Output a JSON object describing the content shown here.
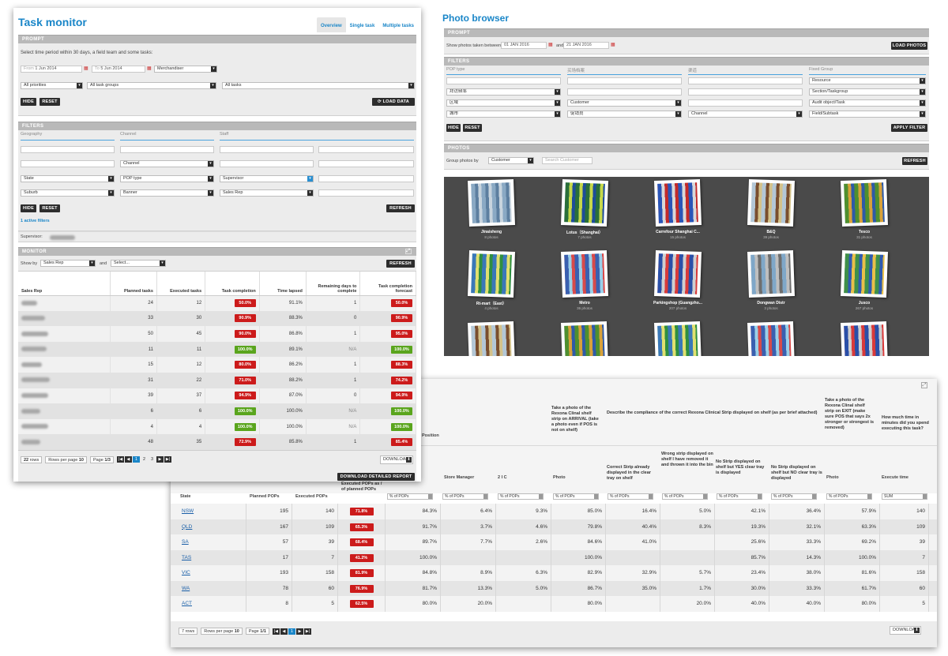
{
  "task_monitor": {
    "title": "Task monitor",
    "tabs": [
      "Overview",
      "Single task",
      "Multiple tasks"
    ],
    "prompt": {
      "header": "PROMPT",
      "instruction": "Select time period within 30 days, a field team and some tasks:",
      "from_label": "From",
      "from_value": "1 Jun 2014",
      "to_label": "To",
      "to_value": "5 Jun 2014",
      "team": "Merchandiser",
      "priorities": "All priorities",
      "task_groups": "All task groups",
      "tasks": "All tasks",
      "hide": "HIDE",
      "reset": "RESET",
      "load_data": "LOAD DATA"
    },
    "filters": {
      "header": "FILTERS",
      "cols": [
        "Geography",
        "Channel",
        "Staff"
      ],
      "channel": "Channel",
      "state": "State",
      "pop_type": "POP type",
      "supervisor": "Supervisor",
      "suburb": "Suburb",
      "banner": "Banner",
      "sales_rep": "Sales Rep",
      "hide": "HIDE",
      "reset": "RESET",
      "refresh": "REFRESH",
      "active_filters": "1 active filters",
      "supervisor_label": "Supervisor:"
    },
    "monitor": {
      "header": "MONITOR",
      "show_by_label": "Show by",
      "show_by": "Sales Rep",
      "and_label": "and",
      "second": "Select...",
      "refresh": "REFRESH",
      "columns": [
        "Sales Rep",
        "Planned tasks",
        "Executed tasks",
        "Task completion",
        "Time lapsed",
        "Remaining days to complete",
        "Task completion forecast"
      ],
      "rows": [
        {
          "planned": "24",
          "executed": "12",
          "completion": "50.0%",
          "c_status": "red",
          "lapsed": "91.1%",
          "remaining": "1",
          "forecast": "50.0%",
          "f_status": "red",
          "w": 20
        },
        {
          "planned": "33",
          "executed": "30",
          "completion": "90.9%",
          "c_status": "red",
          "lapsed": "88.3%",
          "remaining": "0",
          "forecast": "90.9%",
          "f_status": "red",
          "w": 30
        },
        {
          "planned": "50",
          "executed": "45",
          "completion": "90.0%",
          "c_status": "red",
          "lapsed": "86.8%",
          "remaining": "1",
          "forecast": "95.0%",
          "f_status": "red",
          "w": 34
        },
        {
          "planned": "11",
          "executed": "11",
          "completion": "100.0%",
          "c_status": "green",
          "lapsed": "89.1%",
          "remaining": "N/A",
          "forecast": "100.0%",
          "f_status": "green",
          "w": 32
        },
        {
          "planned": "15",
          "executed": "12",
          "completion": "80.0%",
          "c_status": "red",
          "lapsed": "86.2%",
          "remaining": "1",
          "forecast": "88.3%",
          "f_status": "red",
          "w": 26
        },
        {
          "planned": "31",
          "executed": "22",
          "completion": "71.0%",
          "c_status": "red",
          "lapsed": "88.2%",
          "remaining": "1",
          "forecast": "74.2%",
          "f_status": "red",
          "w": 36
        },
        {
          "planned": "39",
          "executed": "37",
          "completion": "94.9%",
          "c_status": "red",
          "lapsed": "87.0%",
          "remaining": "0",
          "forecast": "94.9%",
          "f_status": "red",
          "w": 34
        },
        {
          "planned": "6",
          "executed": "6",
          "completion": "100.0%",
          "c_status": "green",
          "lapsed": "100.0%",
          "remaining": "N/A",
          "forecast": "100.0%",
          "f_status": "green",
          "w": 24
        },
        {
          "planned": "4",
          "executed": "4",
          "completion": "100.0%",
          "c_status": "green",
          "lapsed": "100.0%",
          "remaining": "N/A",
          "forecast": "100.0%",
          "f_status": "green",
          "w": 34
        },
        {
          "planned": "48",
          "executed": "35",
          "completion": "72.9%",
          "c_status": "red",
          "lapsed": "85.8%",
          "remaining": "1",
          "forecast": "85.4%",
          "f_status": "red",
          "w": 24
        }
      ],
      "pager": {
        "rows": "22",
        "rows_label": "rows",
        "per_page_label": "Rows per page",
        "per_page": "10",
        "page_label": "Page",
        "page": "1/3",
        "pages": [
          "1",
          "2",
          "3"
        ],
        "download": "DOWNLOAD"
      },
      "download_report": "DOWNLOAD DETAILED REPORT"
    }
  },
  "photo_browser": {
    "title": "Photo browser",
    "prompt": {
      "header": "PROMPT",
      "label": "Show photos taken between",
      "from": "01 JAN 2016",
      "and_label": "and",
      "to": "21 JAN 2016",
      "load": "LOAD PHOTOS"
    },
    "filters": {
      "header": "FILTERS",
      "cols": [
        "POP type",
        "买场档案",
        "渠道",
        "Fixed Group"
      ],
      "resource": "Resource",
      "r1": [
        "拜访频率",
        "",
        "",
        "Section/Taskgroup"
      ],
      "r2": [
        "区域",
        "Customer",
        "",
        "Audit object/Task"
      ],
      "r3": [
        "城市",
        "促销员",
        "Channel",
        "Field/Subtask"
      ],
      "hide": "HIDE",
      "reset": "RESET",
      "apply": "APPLY FILTER"
    },
    "photos": {
      "header": "PHOTOS",
      "group_label": "Group photos by",
      "group_by": "Customer",
      "search_placeholder": "Search Customer",
      "refresh": "REFRESH",
      "items": [
        {
          "name": "Jinaisheng",
          "count": "8 photos"
        },
        {
          "name": "Lotus（Shanghai）",
          "count": "7 photos"
        },
        {
          "name": "Carrefour Shanghai C...",
          "count": "15 photos"
        },
        {
          "name": "B&Q",
          "count": "39 photos"
        },
        {
          "name": "Tesco",
          "count": "31 photos"
        },
        {
          "name": "Rt-mart（East）",
          "count": "4 photos"
        },
        {
          "name": "Metro",
          "count": "36 photos"
        },
        {
          "name": "Parkingshop (Guangzho...",
          "count": "207 photos"
        },
        {
          "name": "Dongwan Distr",
          "count": "3 photos"
        },
        {
          "name": "Jusco",
          "count": "267 photos"
        }
      ]
    }
  },
  "compliance": {
    "position_label": "Position",
    "q_arrival": "Take a photo of the Rexona Clinal shelf strip on ARRIVAL (take a photo even if POS is not on shelf)",
    "q_describe": "Describe the compliance of the correct Rexona Clinical Strip displayed on shelf (as per brief attached)",
    "q_exit": "Take a photo of the Rexona Clinal shelf strip on EXIT (make sure POS that says 2x stronger or strongest is removed)",
    "q_time": "How much time in minutes did you spend executing this task?",
    "sub": [
      "Store Manager",
      "2 I C",
      "Photo",
      "Correct Strip already displayed in the clear tray on shelf",
      "Wrong strip displayed on shelf I have removed it and thrown it into the bin",
      "No Strip displayed on shelf but YES clear tray is displayed",
      "No Strip displayed on shelf but NO clear tray is displayed",
      "Photo",
      "Execute time"
    ],
    "cols": [
      "State",
      "Planned POPs",
      "Executed POPs",
      "Executed POPs as / of planned POPs"
    ],
    "pct_label": "% of POPs",
    "sum_label": "SUM",
    "rows": [
      {
        "state": "NSW",
        "planned": "195",
        "executed": "140",
        "ratio": "71.8%",
        "v": [
          "84.3%",
          "6.4%",
          "9.3%",
          "85.0%",
          "16.4%",
          "5.0%",
          "42.1%",
          "36.4%",
          "57.9%",
          "140"
        ]
      },
      {
        "state": "QLD",
        "planned": "167",
        "executed": "109",
        "ratio": "65.3%",
        "v": [
          "91.7%",
          "3.7%",
          "4.6%",
          "79.8%",
          "40.4%",
          "8.3%",
          "19.3%",
          "32.1%",
          "63.3%",
          "109"
        ]
      },
      {
        "state": "SA",
        "planned": "57",
        "executed": "39",
        "ratio": "68.4%",
        "v": [
          "89.7%",
          "7.7%",
          "2.6%",
          "84.6%",
          "41.0%",
          "",
          "25.6%",
          "33.3%",
          "69.2%",
          "39"
        ]
      },
      {
        "state": "TAS",
        "planned": "17",
        "executed": "7",
        "ratio": "41.2%",
        "v": [
          "100.0%",
          "",
          "",
          "100.0%",
          "",
          "",
          "85.7%",
          "14.3%",
          "100.0%",
          "7"
        ]
      },
      {
        "state": "VIC",
        "planned": "193",
        "executed": "158",
        "ratio": "81.9%",
        "v": [
          "84.8%",
          "8.9%",
          "6.3%",
          "82.9%",
          "32.9%",
          "5.7%",
          "23.4%",
          "38.0%",
          "81.6%",
          "158"
        ]
      },
      {
        "state": "WA",
        "planned": "78",
        "executed": "60",
        "ratio": "76.9%",
        "v": [
          "81.7%",
          "13.3%",
          "5.0%",
          "86.7%",
          "35.0%",
          "1.7%",
          "30.0%",
          "33.3%",
          "61.7%",
          "60"
        ]
      },
      {
        "state": "ACT",
        "planned": "8",
        "executed": "5",
        "ratio": "62.5%",
        "v": [
          "80.0%",
          "20.0%",
          "",
          "80.0%",
          "",
          "20.0%",
          "40.0%",
          "40.0%",
          "80.0%",
          "5"
        ]
      }
    ],
    "pager": {
      "rows": "7",
      "rows_label": "rows",
      "per_page_label": "Rows per page",
      "per_page": "10",
      "page_label": "Page",
      "page": "1/1",
      "pages": [
        "1"
      ],
      "download": "DOWNLOAD"
    }
  }
}
